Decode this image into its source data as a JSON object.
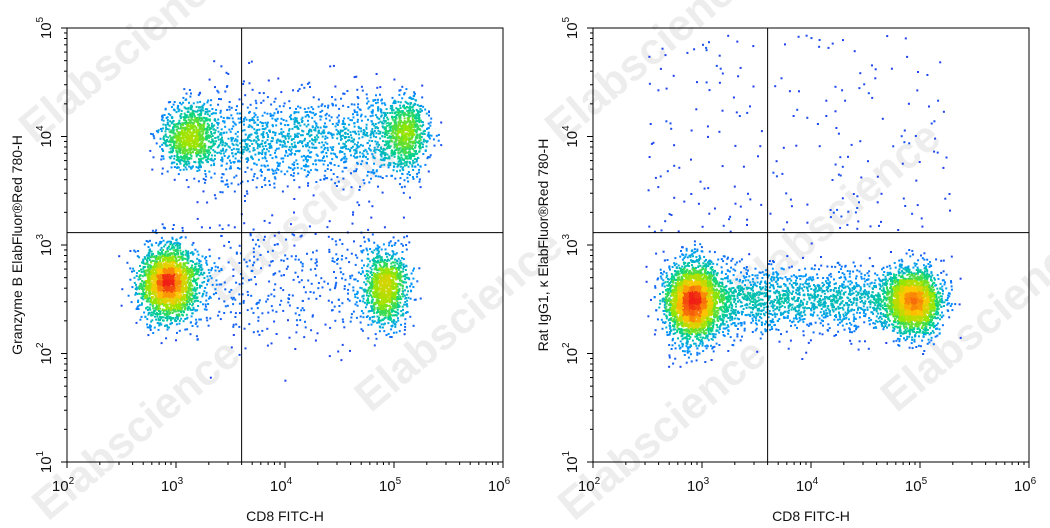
{
  "watermark": "Elabscience",
  "chart_data": [
    {
      "type": "scatter",
      "title": "",
      "xlabel": "CD8 FITC-H",
      "ylabel": "Granzyme B ElabFluor®Red 780-H",
      "x_scale": "log",
      "y_scale": "log",
      "xlim": [
        100,
        1000000
      ],
      "ylim": [
        10,
        100000
      ],
      "x_ticks": [
        {
          "base": "10",
          "exp": "2"
        },
        {
          "base": "10",
          "exp": "3"
        },
        {
          "base": "10",
          "exp": "4"
        },
        {
          "base": "10",
          "exp": "5"
        },
        {
          "base": "10",
          "exp": "6"
        }
      ],
      "y_ticks": [
        {
          "base": "10",
          "exp": "1"
        },
        {
          "base": "10",
          "exp": "2"
        },
        {
          "base": "10",
          "exp": "3"
        },
        {
          "base": "10",
          "exp": "4"
        },
        {
          "base": "10",
          "exp": "5"
        }
      ],
      "quadrant_gate": {
        "x": 4000,
        "y": 1300
      },
      "populations": [
        {
          "name": "CD8- Granzyme B-",
          "center": [
            850,
            450
          ],
          "spread_log": [
            0.13,
            0.17
          ],
          "weight": 0.34
        },
        {
          "name": "CD8+ Granzyme B-",
          "center": [
            85000,
            400
          ],
          "spread_log": [
            0.1,
            0.17
          ],
          "weight": 0.16
        },
        {
          "name": "CD8- Granzyme B+",
          "center": [
            1300,
            10000
          ],
          "spread_log": [
            0.12,
            0.15
          ],
          "weight": 0.13
        },
        {
          "name": "CD8+ Granzyme B+",
          "center": [
            130000,
            11000
          ],
          "spread_log": [
            0.11,
            0.15
          ],
          "weight": 0.09
        },
        {
          "name": "Granzyme B+ band",
          "x_range": [
            1500,
            180000
          ],
          "y_center": 9500,
          "y_spread_log": 0.22,
          "weight": 0.22
        },
        {
          "name": "Granzyme B- band",
          "x_range": [
            1500,
            60000
          ],
          "y_center": 450,
          "y_spread_log": 0.3,
          "weight": 0.06
        }
      ]
    },
    {
      "type": "scatter",
      "title": "",
      "xlabel": "CD8 FITC-H",
      "ylabel": "Rat IgG1, κ ElabFluor®Red 780-H",
      "x_scale": "log",
      "y_scale": "log",
      "xlim": [
        100,
        1000000
      ],
      "ylim": [
        10,
        100000
      ],
      "x_ticks": [
        {
          "base": "10",
          "exp": "2"
        },
        {
          "base": "10",
          "exp": "3"
        },
        {
          "base": "10",
          "exp": "4"
        },
        {
          "base": "10",
          "exp": "5"
        },
        {
          "base": "10",
          "exp": "6"
        }
      ],
      "y_ticks": [
        {
          "base": "10",
          "exp": "1"
        },
        {
          "base": "10",
          "exp": "2"
        },
        {
          "base": "10",
          "exp": "3"
        },
        {
          "base": "10",
          "exp": "4"
        },
        {
          "base": "10",
          "exp": "5"
        }
      ],
      "quadrant_gate": {
        "x": 4000,
        "y": 1300
      },
      "populations": [
        {
          "name": "CD8- isotype",
          "center": [
            850,
            300
          ],
          "spread_log": [
            0.13,
            0.18
          ],
          "weight": 0.45
        },
        {
          "name": "CD8+ isotype",
          "center": [
            90000,
            300
          ],
          "spread_log": [
            0.12,
            0.15
          ],
          "weight": 0.3
        },
        {
          "name": "bridge",
          "x_range": [
            1500,
            70000
          ],
          "y_center": 320,
          "y_spread_log": 0.15,
          "weight": 0.22
        },
        {
          "name": "sparse high events",
          "x_range": [
            300,
            200000
          ],
          "y_range": [
            1300,
            90000
          ],
          "weight": 0.03
        }
      ]
    }
  ]
}
